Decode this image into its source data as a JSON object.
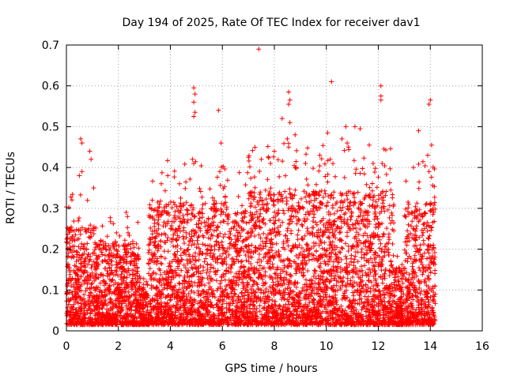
{
  "chart_data": {
    "type": "scatter",
    "title": "Day 194 of 2025, Rate Of TEC Index for receiver dav1",
    "xlabel": "GPS time / hours",
    "ylabel": "ROTI / TECUs",
    "xlim": [
      0,
      16
    ],
    "ylim": [
      0,
      0.7
    ],
    "x_ticks": [
      0,
      2,
      4,
      6,
      8,
      10,
      12,
      14,
      16
    ],
    "x_tick_labels": [
      "0",
      "2",
      "4",
      "6",
      "8",
      "10",
      "12",
      "14",
      "16"
    ],
    "y_ticks": [
      0,
      0.1,
      0.2,
      0.3,
      0.4,
      0.5,
      0.6,
      0.7
    ],
    "y_tick_labels": [
      "0",
      "0.1",
      "0.2",
      "0.3",
      "0.4",
      "0.5",
      "0.6",
      "0.7"
    ],
    "grid": true,
    "marker": "+",
    "marker_color": "#ff0000",
    "data_x_range_hours": [
      0,
      14.2
    ],
    "generated_dense_points_note_free": true,
    "series": [
      {
        "name": "ROTI",
        "color": "#ff0000",
        "notable_points": [
          {
            "x": 0.55,
            "y": 0.47
          },
          {
            "x": 0.6,
            "y": 0.46
          },
          {
            "x": 0.9,
            "y": 0.44
          },
          {
            "x": 0.95,
            "y": 0.42
          },
          {
            "x": 0.6,
            "y": 0.39
          },
          {
            "x": 0.5,
            "y": 0.38
          },
          {
            "x": 1.05,
            "y": 0.35
          },
          {
            "x": 2.3,
            "y": 0.29
          },
          {
            "x": 2.35,
            "y": 0.28
          },
          {
            "x": 3.3,
            "y": 0.32
          },
          {
            "x": 3.65,
            "y": 0.36
          },
          {
            "x": 3.9,
            "y": 0.38
          },
          {
            "x": 4.35,
            "y": 0.36
          },
          {
            "x": 4.85,
            "y": 0.42
          },
          {
            "x": 4.9,
            "y": 0.41
          },
          {
            "x": 4.9,
            "y": 0.595
          },
          {
            "x": 4.95,
            "y": 0.58
          },
          {
            "x": 4.9,
            "y": 0.56
          },
          {
            "x": 4.95,
            "y": 0.535
          },
          {
            "x": 4.9,
            "y": 0.525
          },
          {
            "x": 5.85,
            "y": 0.54
          },
          {
            "x": 5.95,
            "y": 0.46
          },
          {
            "x": 5.9,
            "y": 0.39
          },
          {
            "x": 7.4,
            "y": 0.69
          },
          {
            "x": 7.5,
            "y": 0.42
          },
          {
            "x": 7.85,
            "y": 0.41
          },
          {
            "x": 8.0,
            "y": 0.44
          },
          {
            "x": 8.3,
            "y": 0.52
          },
          {
            "x": 8.55,
            "y": 0.585
          },
          {
            "x": 8.6,
            "y": 0.565
          },
          {
            "x": 8.55,
            "y": 0.555
          },
          {
            "x": 8.6,
            "y": 0.51
          },
          {
            "x": 8.5,
            "y": 0.47
          },
          {
            "x": 8.55,
            "y": 0.45
          },
          {
            "x": 8.8,
            "y": 0.48
          },
          {
            "x": 8.85,
            "y": 0.4
          },
          {
            "x": 9.2,
            "y": 0.41
          },
          {
            "x": 9.75,
            "y": 0.43
          },
          {
            "x": 10.2,
            "y": 0.61
          },
          {
            "x": 10.05,
            "y": 0.485
          },
          {
            "x": 10.15,
            "y": 0.42
          },
          {
            "x": 10.6,
            "y": 0.47
          },
          {
            "x": 10.75,
            "y": 0.5
          },
          {
            "x": 10.8,
            "y": 0.46
          },
          {
            "x": 10.85,
            "y": 0.45
          },
          {
            "x": 11.1,
            "y": 0.5
          },
          {
            "x": 11.3,
            "y": 0.495
          },
          {
            "x": 11.65,
            "y": 0.455
          },
          {
            "x": 11.8,
            "y": 0.41
          },
          {
            "x": 12.1,
            "y": 0.6
          },
          {
            "x": 12.1,
            "y": 0.575
          },
          {
            "x": 12.1,
            "y": 0.565
          },
          {
            "x": 12.15,
            "y": 0.41
          },
          {
            "x": 13.35,
            "y": 0.4
          },
          {
            "x": 13.55,
            "y": 0.49
          },
          {
            "x": 13.95,
            "y": 0.555
          },
          {
            "x": 14.0,
            "y": 0.565
          },
          {
            "x": 14.05,
            "y": 0.455
          },
          {
            "x": 13.9,
            "y": 0.43
          },
          {
            "x": 13.95,
            "y": 0.39
          }
        ],
        "segments": [
          {
            "x_start": 0.0,
            "x_end": 1.15,
            "base_max": 0.24
          },
          {
            "x_start": 1.15,
            "x_end": 2.8,
            "base_max": 0.2
          },
          {
            "x_start": 2.8,
            "x_end": 3.15,
            "base_max": 0.1
          },
          {
            "x_start": 3.15,
            "x_end": 6.2,
            "base_max": 0.3
          },
          {
            "x_start": 6.2,
            "x_end": 7.0,
            "base_max": 0.28
          },
          {
            "x_start": 7.0,
            "x_end": 12.6,
            "base_max": 0.33
          },
          {
            "x_start": 12.6,
            "x_end": 13.0,
            "base_max": 0.14
          },
          {
            "x_start": 13.0,
            "x_end": 14.2,
            "base_max": 0.3
          }
        ]
      }
    ]
  }
}
